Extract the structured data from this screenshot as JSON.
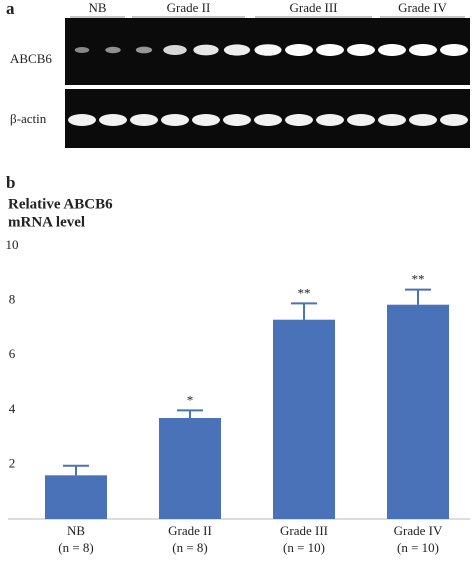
{
  "panel_a": {
    "label": "a",
    "groups": [
      "NB",
      "Grade II",
      "Grade III",
      "Grade IV"
    ],
    "rows": [
      "ABCB6",
      "β-actin"
    ]
  },
  "chart_data": {
    "type": "bar",
    "panel_label": "b",
    "title": [
      "Relative ABCB6",
      "mRNA level"
    ],
    "categories": [
      "NB",
      "Grade II",
      "Grade III",
      "Grade IV"
    ],
    "category_notes": [
      "(n = 8)",
      "(n = 8)",
      "(n = 10)",
      "(n = 10)"
    ],
    "values": [
      1.6,
      3.7,
      7.3,
      7.85
    ],
    "errors": [
      0.35,
      0.28,
      0.6,
      0.55
    ],
    "annotations": [
      null,
      "*",
      "**",
      "**"
    ],
    "color": "#4a72b8",
    "ylim": [
      0,
      10
    ],
    "yticks": [
      2,
      4,
      6,
      8,
      10
    ],
    "grid": false
  }
}
